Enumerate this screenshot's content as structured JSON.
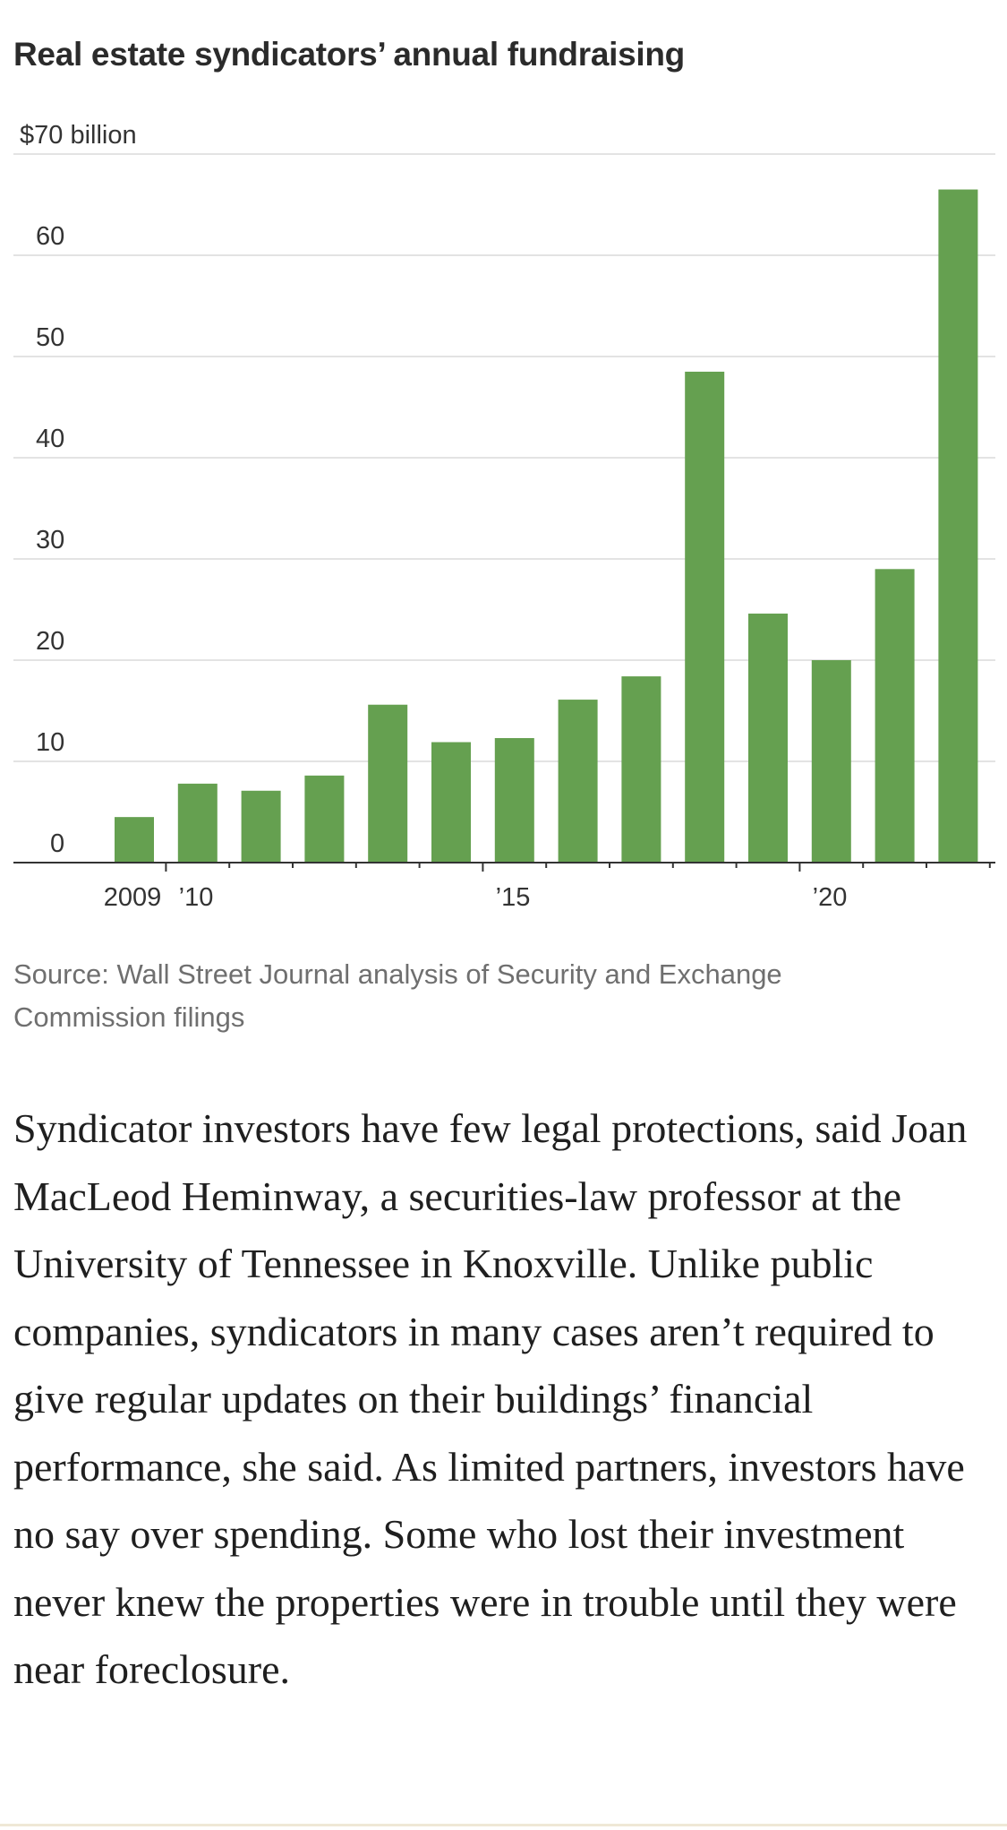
{
  "chart_data": {
    "type": "bar",
    "title": "Real estate syndicators’ annual fundraising",
    "ylabel": "",
    "xlabel": "",
    "ylim": [
      0,
      70
    ],
    "y_ticks": [
      {
        "value": 0,
        "label": "0"
      },
      {
        "value": 10,
        "label": "10"
      },
      {
        "value": 20,
        "label": "20"
      },
      {
        "value": 30,
        "label": "30"
      },
      {
        "value": 40,
        "label": "40"
      },
      {
        "value": 50,
        "label": "50"
      },
      {
        "value": 60,
        "label": "60"
      },
      {
        "value": 70,
        "label": "$70 billion"
      }
    ],
    "categories": [
      "2009",
      "2010",
      "2011",
      "2012",
      "2013",
      "2014",
      "2015",
      "2016",
      "2017",
      "2018",
      "2019",
      "2020",
      "2021",
      "2022"
    ],
    "values": [
      4.5,
      7.8,
      7.1,
      8.6,
      15.6,
      11.9,
      12.3,
      16.1,
      18.4,
      48.5,
      24.6,
      20.0,
      29.0,
      66.5
    ],
    "x_tick_labels": [
      {
        "category": "2009",
        "label": "2009"
      },
      {
        "category": "2010",
        "label": "’10"
      },
      {
        "category": "2015",
        "label": "’15"
      },
      {
        "category": "2020",
        "label": "’20"
      }
    ],
    "grid": true,
    "bar_color": "#65a050",
    "source": "Source: Wall Street Journal analysis of Security and Exchange Commission filings"
  },
  "article": {
    "paragraph": "Syndicator investors have few legal protections, said Joan MacLeod Heminway, a securities-law professor at the University of Tennessee in Knoxville. Unlike public companies, syndicators in many cases aren’t required to give regular updates on their buildings’ financial performance, she said. As limited partners, investors have no say over spending. Some who lost their investment never knew the properties were in trouble until they were near foreclosure."
  }
}
